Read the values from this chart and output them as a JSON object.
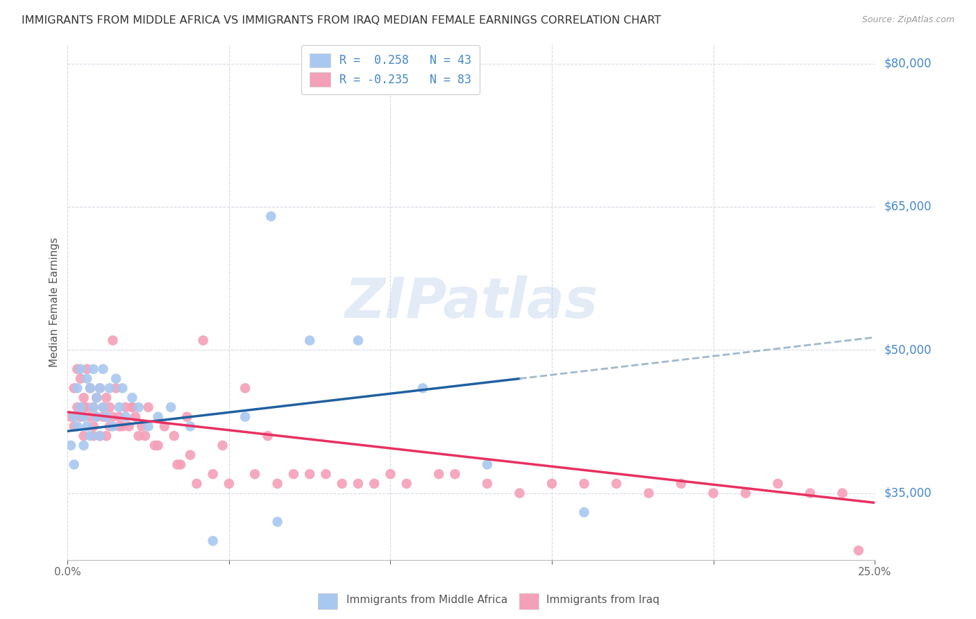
{
  "title": "IMMIGRANTS FROM MIDDLE AFRICA VS IMMIGRANTS FROM IRAQ MEDIAN FEMALE EARNINGS CORRELATION CHART",
  "source": "Source: ZipAtlas.com",
  "ylabel": "Median Female Earnings",
  "xlim": [
    0.0,
    0.25
  ],
  "ylim": [
    28000,
    82000
  ],
  "yticks": [
    35000,
    50000,
    65000,
    80000
  ],
  "ytick_labels": [
    "$35,000",
    "$50,000",
    "$65,000",
    "$80,000"
  ],
  "xticks": [
    0.0,
    0.05,
    0.1,
    0.15,
    0.2,
    0.25
  ],
  "xtick_labels": [
    "0.0%",
    "",
    "",
    "",
    "",
    "25.0%"
  ],
  "legend_r_blue": "0.258",
  "legend_n_blue": "43",
  "legend_r_pink": "-0.235",
  "legend_n_pink": "83",
  "legend_label_blue": "Immigrants from Middle Africa",
  "legend_label_pink": "Immigrants from Iraq",
  "blue_color": "#a8c8f0",
  "pink_color": "#f4a0b8",
  "trend_blue_solid": "#2060a0",
  "trend_blue_dash": "#a0b8cc",
  "trend_pink_solid": "#e83060",
  "axis_label_color": "#4488cc",
  "grid_color": "#d8d8e8",
  "title_color": "#333333",
  "watermark": "ZIPatlas",
  "blue_x": [
    0.001,
    0.002,
    0.002,
    0.003,
    0.003,
    0.004,
    0.004,
    0.005,
    0.005,
    0.006,
    0.006,
    0.007,
    0.007,
    0.008,
    0.008,
    0.009,
    0.009,
    0.01,
    0.01,
    0.011,
    0.011,
    0.012,
    0.013,
    0.014,
    0.015,
    0.016,
    0.017,
    0.018,
    0.02,
    0.022,
    0.025,
    0.028,
    0.032,
    0.038,
    0.045,
    0.055,
    0.065,
    0.075,
    0.09,
    0.11,
    0.13,
    0.16,
    0.063
  ],
  "blue_y": [
    40000,
    43000,
    38000,
    46000,
    42000,
    48000,
    44000,
    43000,
    40000,
    47000,
    42000,
    46000,
    41000,
    48000,
    44000,
    43000,
    45000,
    46000,
    41000,
    44000,
    48000,
    43000,
    46000,
    42000,
    47000,
    44000,
    46000,
    43000,
    45000,
    44000,
    42000,
    43000,
    44000,
    42000,
    30000,
    43000,
    32000,
    51000,
    51000,
    46000,
    38000,
    33000,
    64000
  ],
  "pink_x": [
    0.001,
    0.002,
    0.002,
    0.003,
    0.003,
    0.004,
    0.004,
    0.005,
    0.005,
    0.006,
    0.006,
    0.007,
    0.007,
    0.008,
    0.008,
    0.009,
    0.009,
    0.01,
    0.01,
    0.011,
    0.011,
    0.012,
    0.012,
    0.013,
    0.013,
    0.014,
    0.014,
    0.015,
    0.016,
    0.017,
    0.018,
    0.019,
    0.02,
    0.021,
    0.022,
    0.023,
    0.025,
    0.027,
    0.03,
    0.033,
    0.037,
    0.042,
    0.048,
    0.055,
    0.062,
    0.07,
    0.08,
    0.09,
    0.1,
    0.115,
    0.13,
    0.15,
    0.17,
    0.19,
    0.21,
    0.23,
    0.245,
    0.035,
    0.04,
    0.045,
    0.05,
    0.058,
    0.065,
    0.075,
    0.085,
    0.095,
    0.105,
    0.12,
    0.14,
    0.16,
    0.18,
    0.2,
    0.22,
    0.24,
    0.005,
    0.008,
    0.012,
    0.016,
    0.02,
    0.024,
    0.028,
    0.034,
    0.038
  ],
  "pink_y": [
    43000,
    46000,
    42000,
    48000,
    44000,
    43000,
    47000,
    45000,
    41000,
    44000,
    48000,
    43000,
    46000,
    44000,
    42000,
    45000,
    43000,
    46000,
    41000,
    44000,
    43000,
    45000,
    41000,
    44000,
    42000,
    51000,
    43000,
    46000,
    43000,
    42000,
    44000,
    42000,
    44000,
    43000,
    41000,
    42000,
    44000,
    40000,
    42000,
    41000,
    43000,
    51000,
    40000,
    46000,
    41000,
    37000,
    37000,
    36000,
    37000,
    37000,
    36000,
    36000,
    36000,
    36000,
    35000,
    35000,
    29000,
    38000,
    36000,
    37000,
    36000,
    37000,
    36000,
    37000,
    36000,
    36000,
    36000,
    37000,
    35000,
    36000,
    35000,
    35000,
    36000,
    35000,
    44000,
    41000,
    43000,
    42000,
    44000,
    41000,
    40000,
    38000,
    39000
  ]
}
